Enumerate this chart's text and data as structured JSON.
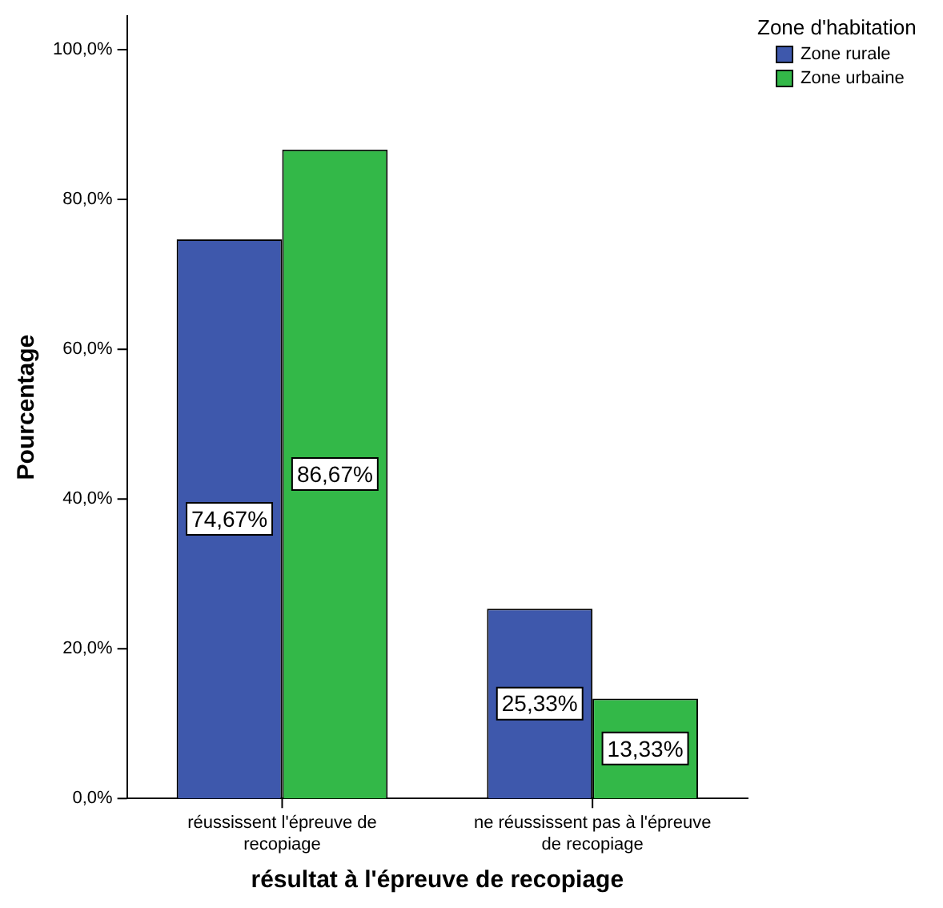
{
  "chart_data": {
    "type": "bar",
    "xlabel": "résultat à l'épreuve de recopiage",
    "ylabel": "Pourcentage",
    "legend_title": "Zone d'habitation",
    "legend": "top right",
    "categories": [
      "réussissent l'épreuve de recopiage",
      "ne réussissent pas à l'épreuve de recopiage"
    ],
    "series": [
      {
        "name": "Zone rurale",
        "color": "#3e58ac",
        "values": [
          74.67,
          25.33
        ],
        "value_labels": [
          "74,67%",
          "25,33%"
        ]
      },
      {
        "name": "Zone urbaine",
        "color": "#33b848",
        "values": [
          86.67,
          13.33
        ],
        "value_labels": [
          "86,67%",
          "13,33%"
        ]
      }
    ],
    "ylim": [
      0,
      104.5
    ],
    "yticks": [
      {
        "value": 0,
        "label": "0,0%"
      },
      {
        "value": 20,
        "label": "20,0%"
      },
      {
        "value": 40,
        "label": "40,0%"
      },
      {
        "value": 60,
        "label": "60,0%"
      },
      {
        "value": 80,
        "label": "80,0%"
      },
      {
        "value": 100,
        "label": "100,0%"
      }
    ],
    "grid": false
  }
}
